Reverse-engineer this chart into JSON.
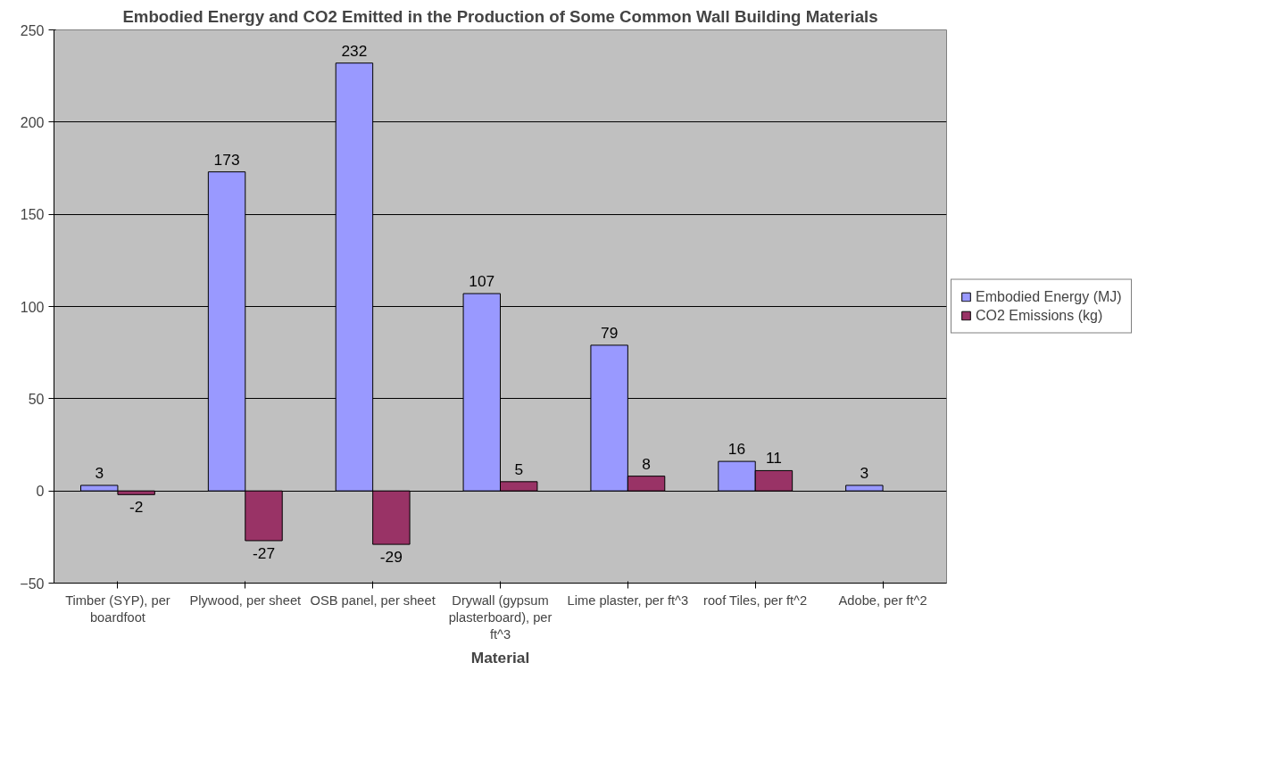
{
  "chart_data": {
    "type": "bar",
    "title": "Embodied Energy and CO2 Emitted in the Production of Some Common Wall Building Materials",
    "xlabel": "Material",
    "categories": [
      "Timber (SYP), per boardfoot",
      "Plywood, per sheet",
      "OSB panel, per sheet",
      "Drywall (gypsum plasterboard), per ft^3",
      "Lime plaster, per ft^3",
      "roof Tiles, per ft^2",
      "Adobe, per ft^2"
    ],
    "series": [
      {
        "name": "Embodied Energy (MJ)",
        "color": "#9999ff",
        "values": [
          3,
          173,
          232,
          107,
          79,
          16,
          3
        ]
      },
      {
        "name": "CO2 Emissions (kg)",
        "color": "#993366",
        "values": [
          -2,
          -27,
          -29,
          5,
          8,
          11,
          null
        ]
      }
    ],
    "ylim": [
      -50,
      250
    ],
    "yticks": [
      -50,
      0,
      50,
      100,
      150,
      200,
      250
    ],
    "grid": "y",
    "legend": "right",
    "data_labels": true
  }
}
